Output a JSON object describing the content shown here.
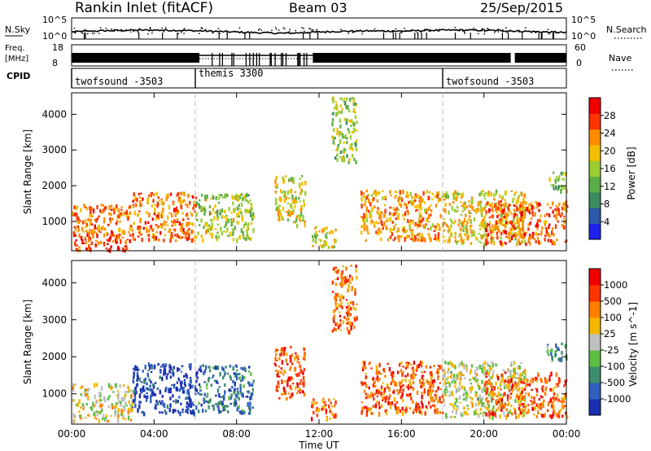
{
  "header": {
    "station": "Rankin Inlet (fitACF)",
    "beam": "Beam 03",
    "date": "25/Sep/2015"
  },
  "nsky_panel": {
    "left_label": "N.Sky",
    "right_label": "N.Search",
    "ticks_left": [
      "10^5",
      "10^0"
    ],
    "ticks_right": [
      "10^5",
      "10^0"
    ]
  },
  "freq_panel": {
    "left_label_line1": "Freq.",
    "left_label_line2": "[MHz]",
    "right_label": "Nave",
    "ticks_left": [
      "18",
      "8"
    ],
    "ticks_right": [
      "60",
      "0"
    ]
  },
  "cpid_panel": {
    "label": "CPID",
    "segments": [
      {
        "name": "twofsound -3503",
        "start_hour": 0
      },
      {
        "name": "themis 3300",
        "start_hour": 6
      },
      {
        "name": "twofsound -3503",
        "start_hour": 18
      }
    ]
  },
  "x_axis": {
    "title": "Time UT",
    "tick_labels": [
      "00:00",
      "04:00",
      "08:00",
      "12:00",
      "16:00",
      "20:00",
      "00:00"
    ],
    "tick_hours": [
      0,
      4,
      8,
      12,
      16,
      20,
      24
    ]
  },
  "chart_data": [
    {
      "type": "heatmap",
      "title": "",
      "xlabel": "Time UT",
      "ylabel": "Slant Range [km]",
      "xlim": [
        0,
        24
      ],
      "ylim": [
        180,
        4600
      ],
      "y_tick_labels": [
        "1000",
        "2000",
        "3000",
        "4000"
      ],
      "y_tick_values": [
        1000,
        2000,
        3000,
        4000
      ],
      "colorbar": {
        "label": "Power [dB]",
        "range": [
          0,
          32
        ],
        "tick_labels": [
          "4",
          "8",
          "12",
          "16",
          "20",
          "24",
          "28"
        ],
        "tick_values": [
          4,
          8,
          12,
          16,
          20,
          24,
          28
        ],
        "colors": [
          "#1e22ee",
          "#2a5aa8",
          "#3d8a5e",
          "#5cae48",
          "#9acd32",
          "#f0c000",
          "#ff8c00",
          "#ff3300",
          "#ee0000"
        ]
      },
      "regions": [
        {
          "t0": 0.0,
          "t1": 2.9,
          "r0": 220,
          "r1": 700,
          "level": 0.85
        },
        {
          "t0": 0.0,
          "t1": 2.9,
          "r0": 700,
          "r1": 1500,
          "level": 0.75
        },
        {
          "t0": 2.9,
          "t1": 6.0,
          "r0": 500,
          "r1": 1850,
          "level": 0.75
        },
        {
          "t0": 6.0,
          "t1": 8.8,
          "r0": 500,
          "r1": 1800,
          "level": 0.5
        },
        {
          "t0": 9.8,
          "t1": 11.3,
          "r0": 900,
          "r1": 2300,
          "level": 0.55
        },
        {
          "t0": 11.6,
          "t1": 12.8,
          "r0": 300,
          "r1": 900,
          "level": 0.55
        },
        {
          "t0": 14.0,
          "t1": 18.0,
          "r0": 500,
          "r1": 1900,
          "level": 0.7
        },
        {
          "t0": 18.0,
          "t1": 22.0,
          "r0": 400,
          "r1": 1900,
          "level": 0.6
        },
        {
          "t0": 20.0,
          "t1": 24.0,
          "r0": 400,
          "r1": 1600,
          "level": 0.8
        },
        {
          "t0": 23.0,
          "t1": 24.0,
          "r0": 1900,
          "r1": 2400,
          "level": 0.45
        },
        {
          "t0": 12.6,
          "t1": 13.8,
          "r0": 2700,
          "r1": 4500,
          "level": 0.45
        }
      ]
    },
    {
      "type": "heatmap",
      "title": "",
      "xlabel": "Time UT",
      "ylabel": "Slant Range [km]",
      "xlim": [
        0,
        24
      ],
      "ylim": [
        180,
        4600
      ],
      "y_tick_labels": [
        "1000",
        "2000",
        "3000",
        "4000"
      ],
      "y_tick_values": [
        1000,
        2000,
        3000,
        4000
      ],
      "colorbar": {
        "label": "Velocity [m s^-1]",
        "range": [
          -1200,
          1200
        ],
        "tick_labels": [
          "1000",
          "500",
          "100",
          "25",
          "-25",
          "-100",
          "-500",
          "-1000"
        ],
        "tick_values": [
          1000,
          500,
          100,
          25,
          -25,
          -100,
          -500,
          -1000
        ],
        "colors": [
          "#1a30b0",
          "#2f5fbf",
          "#3c8c6c",
          "#5dbd45",
          "#c0c0c0",
          "#f2b800",
          "#ff7f00",
          "#ff3300",
          "#ee0000"
        ]
      },
      "regions": [
        {
          "t0": 0.0,
          "t1": 2.9,
          "r0": 300,
          "r1": 1300,
          "level": 0.55
        },
        {
          "t0": 2.9,
          "t1": 6.0,
          "r0": 500,
          "r1": 1850,
          "level": 0.08
        },
        {
          "t0": 6.0,
          "t1": 8.8,
          "r0": 500,
          "r1": 1800,
          "level": 0.2
        },
        {
          "t0": 9.8,
          "t1": 11.3,
          "r0": 900,
          "r1": 2300,
          "level": 0.8
        },
        {
          "t0": 11.6,
          "t1": 12.8,
          "r0": 300,
          "r1": 900,
          "level": 0.75
        },
        {
          "t0": 14.0,
          "t1": 18.0,
          "r0": 500,
          "r1": 1900,
          "level": 0.8
        },
        {
          "t0": 18.0,
          "t1": 22.0,
          "r0": 400,
          "r1": 1900,
          "level": 0.5
        },
        {
          "t0": 20.0,
          "t1": 24.0,
          "r0": 400,
          "r1": 1600,
          "level": 0.78
        },
        {
          "t0": 23.0,
          "t1": 24.0,
          "r0": 1900,
          "r1": 2400,
          "level": 0.3
        },
        {
          "t0": 12.6,
          "t1": 13.8,
          "r0": 2700,
          "r1": 4500,
          "level": 0.75
        }
      ]
    }
  ]
}
